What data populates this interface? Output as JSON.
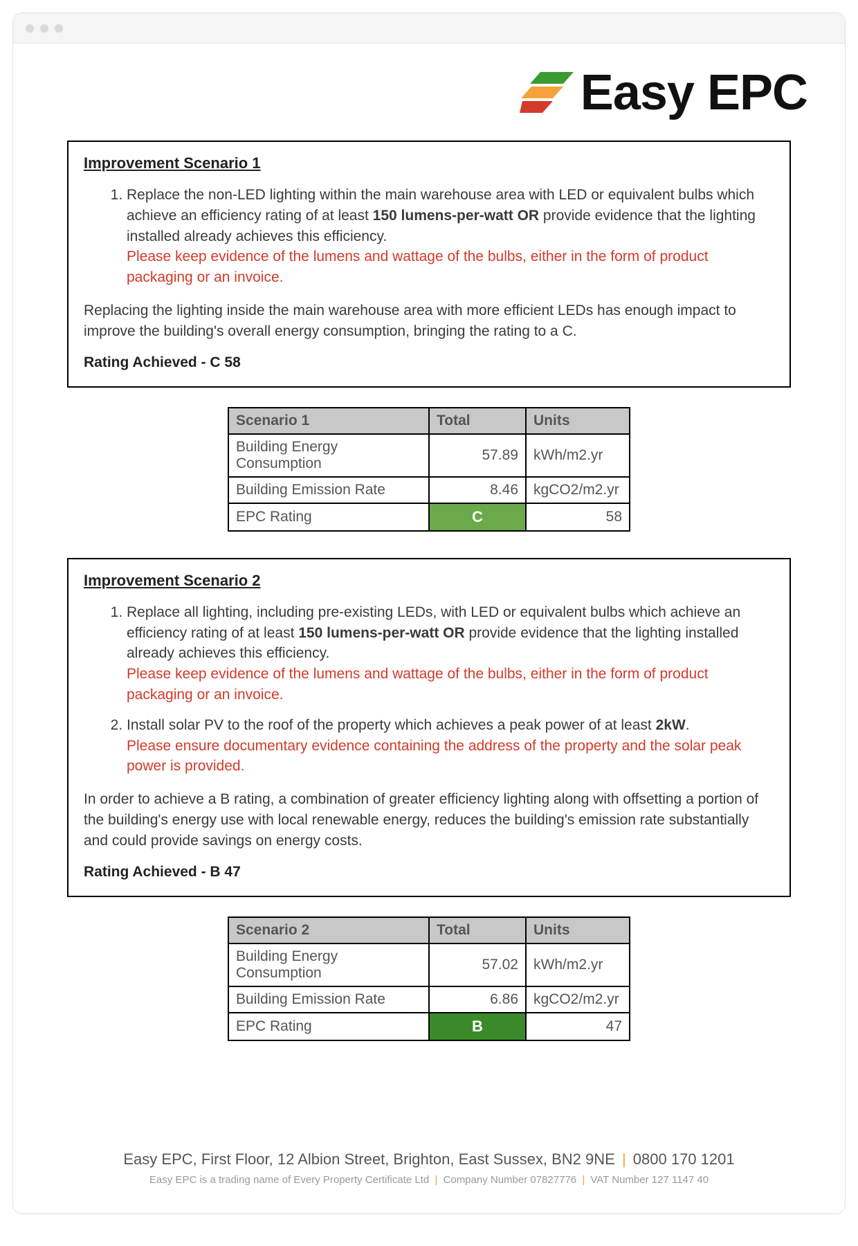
{
  "logo": {
    "text": "Easy EPC",
    "colors": [
      "#3a9b2f",
      "#f3a33a",
      "#d23a2a"
    ]
  },
  "colors": {
    "note_red": "#d23a2a",
    "header_grey": "#c8c8c8",
    "rating_c_bg": "#6aaa4a",
    "rating_b_bg": "#3a8a2a",
    "sep_orange": "#f3a33a"
  },
  "scenario1": {
    "title": "Improvement Scenario 1",
    "items": [
      {
        "main_pre": "Replace the non-LED lighting within the main warehouse area with LED or equivalent bulbs which achieve an efficiency rating of at least ",
        "bold": "150 lumens-per-watt OR",
        "main_post": " provide evidence that the lighting installed already achieves this efficiency.",
        "note": "Please keep evidence of the lumens and wattage of the bulbs, either in the form of product packaging or an invoice."
      }
    ],
    "summary": "Replacing the lighting inside the main warehouse area with more efficient LEDs has enough impact to improve the building's overall energy consumption, bringing the rating to a C.",
    "rating_label": "Rating Achieved - C 58",
    "table": {
      "header": [
        "Scenario 1",
        "Total",
        "Units"
      ],
      "rows": [
        {
          "label": "Building Energy Consumption",
          "total": "57.89",
          "units": "kWh/m2.yr"
        },
        {
          "label": "Building Emission Rate",
          "total": "8.46",
          "units": "kgCO2/m2.yr"
        }
      ],
      "rating_row": {
        "label": "EPC Rating",
        "letter": "C",
        "value": "58",
        "bg": "#6aaa4a"
      }
    }
  },
  "scenario2": {
    "title": "Improvement Scenario 2",
    "items": [
      {
        "main_pre": "Replace all lighting, including pre-existing LEDs, with LED or equivalent bulbs which achieve an efficiency rating of at least ",
        "bold": "150 lumens-per-watt OR",
        "main_post": " provide evidence that the lighting installed already achieves this efficiency.",
        "note": "Please keep evidence of the lumens and wattage of the bulbs, either in the form of product packaging or an invoice."
      },
      {
        "main_pre": "Install solar PV to the roof of the property which achieves a peak power of at least ",
        "bold": "2kW",
        "main_post": ".",
        "note": "Please ensure documentary evidence containing the address of the property and the solar peak power is provided."
      }
    ],
    "summary": "In order to achieve a B rating, a combination of greater efficiency lighting along with offsetting a portion of the building's energy use with local renewable energy,  reduces the building's emission rate substantially and could provide savings on energy costs.",
    "rating_label": "Rating Achieved - B 47",
    "table": {
      "header": [
        "Scenario 2",
        "Total",
        "Units"
      ],
      "rows": [
        {
          "label": "Building Energy Consumption",
          "total": "57.02",
          "units": "kWh/m2.yr"
        },
        {
          "label": "Building Emission Rate",
          "total": "6.86",
          "units": "kgCO2/m2.yr"
        }
      ],
      "rating_row": {
        "label": "EPC Rating",
        "letter": "B",
        "value": "47",
        "bg": "#3a8a2a"
      }
    }
  },
  "footer": {
    "address": "Easy EPC, First Floor, 12 Albion Street, Brighton, East Sussex, BN2 9NE",
    "phone": "0800 170 1201",
    "line2_a": "Easy EPC is a trading name of Every Property Certificate Ltd",
    "line2_b": "Company Number 07827776",
    "line2_c": "VAT Number 127 1147 40"
  }
}
